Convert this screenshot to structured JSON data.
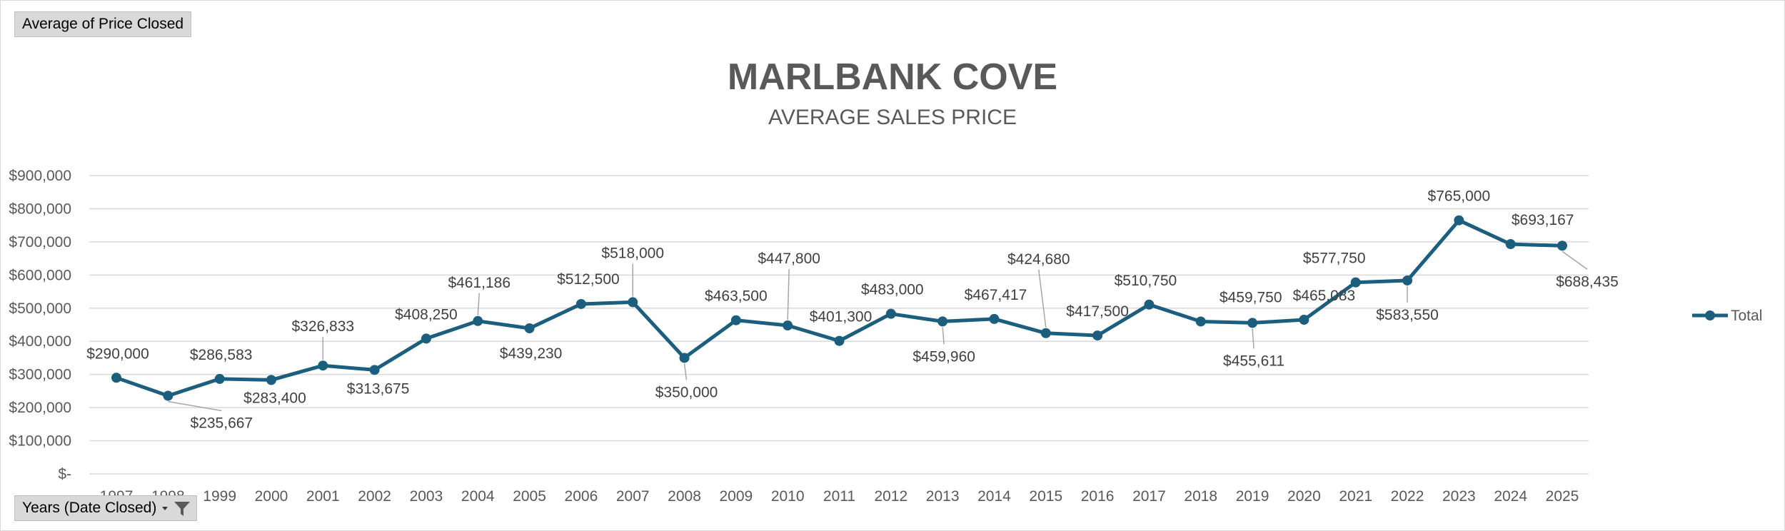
{
  "pivot": {
    "value_field": "Average of Price Closed",
    "row_field": "Years (Date Closed)"
  },
  "colors": {
    "line": "#1b5e7e",
    "grid": "#d9d9d9",
    "text": "#595959",
    "label": "#404040"
  },
  "chart_data": {
    "type": "line",
    "title": "MARLBANK COVE",
    "subtitle": "AVERAGE SALES PRICE",
    "categories": [
      "1997",
      "1998",
      "1999",
      "2000",
      "2001",
      "2002",
      "2003",
      "2004",
      "2005",
      "2006",
      "2007",
      "2008",
      "2009",
      "2010",
      "2011",
      "2012",
      "2013",
      "2014",
      "2015",
      "2016",
      "2017",
      "2018",
      "2019",
      "2020",
      "2021",
      "2022",
      "2023",
      "2024",
      "2025"
    ],
    "series": [
      {
        "name": "Total",
        "values": [
          290000,
          235667,
          286583,
          283400,
          326833,
          313675,
          408250,
          461186,
          439230,
          512500,
          518000,
          350000,
          463500,
          447800,
          401300,
          483000,
          459960,
          467417,
          424680,
          417500,
          510750,
          459750,
          455611,
          465083,
          577750,
          583550,
          765000,
          693167,
          688435
        ]
      }
    ],
    "data_labels": [
      "$290,000",
      "$235,667",
      "$286,583",
      "$283,400",
      "$326,833",
      "$313,675",
      "$408,250",
      "$461,186",
      "$439,230",
      "$512,500",
      "$518,000",
      "$350,000",
      "$463,500",
      "$447,800",
      "$401,300",
      "$483,000",
      "$459,960",
      "$467,417",
      "$424,680",
      "$417,500",
      "$510,750",
      "$459,750",
      "$455,611",
      "$465,083",
      "$577,750",
      "$583,550",
      "$765,000",
      "$693,167",
      "$688,435"
    ],
    "ylim": [
      0,
      900000
    ],
    "yticks": [
      0,
      100000,
      200000,
      300000,
      400000,
      500000,
      600000,
      700000,
      800000,
      900000
    ],
    "ytick_labels": [
      "$-",
      "$100,000",
      "$200,000",
      "$300,000",
      "$400,000",
      "$500,000",
      "$600,000",
      "$700,000",
      "$800,000",
      "$900,000"
    ],
    "grid": true,
    "legend_position": "right",
    "legend_entries": [
      "Total"
    ]
  }
}
